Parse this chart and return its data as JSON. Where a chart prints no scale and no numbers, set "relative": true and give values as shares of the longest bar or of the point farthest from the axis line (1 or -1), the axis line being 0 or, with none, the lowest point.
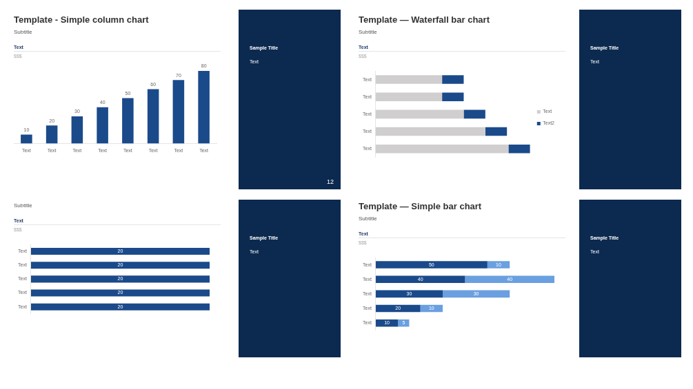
{
  "chart_data": [
    {
      "type": "bar",
      "title": "Template - Simple column chart",
      "subtitle": "Subtitle",
      "annotations": [
        "Text"
      ],
      "ylabel": "$$$",
      "categories": [
        "Text",
        "Text",
        "Text",
        "Text",
        "Text",
        "Text",
        "Text",
        "Text"
      ],
      "values": [
        10,
        20,
        30,
        40,
        50,
        60,
        70,
        80
      ],
      "color": "#1a4a8a",
      "data_labels": true,
      "grid": false,
      "legend": false
    },
    {
      "type": "other",
      "title": "Sample Title",
      "annotations": [
        "Text",
        "12"
      ]
    },
    {
      "type": "bar",
      "title": "Template — Waterfall bar chart",
      "subtitle": "Subtitle",
      "annotations": [
        "Text"
      ],
      "ylabel": "$$$",
      "orientation": "horizontal",
      "stacked": true,
      "relative": true,
      "categories": [
        "Text",
        "Text",
        "Text",
        "Text",
        "Text"
      ],
      "series": [
        {
          "name": "Text",
          "color": "#d0cece",
          "values": [
            0.43,
            0.43,
            0.57,
            0.71,
            0.86
          ]
        },
        {
          "name": "Text2",
          "color": "#1a4a8a",
          "values": [
            0.14,
            0.14,
            0.14,
            0.14,
            0.14
          ]
        }
      ],
      "grid": false,
      "legend": "right"
    },
    {
      "type": "other",
      "title": "Sample Title",
      "annotations": [
        "Text"
      ]
    },
    {
      "type": "bar",
      "subtitle": "Subtitle",
      "annotations": [
        "Text"
      ],
      "ylabel": "$$$",
      "orientation": "horizontal",
      "categories": [
        "Text",
        "Text",
        "Text",
        "Text",
        "Text"
      ],
      "values": [
        20,
        20,
        20,
        20,
        20
      ],
      "color": "#1a4a8a",
      "data_labels": true,
      "grid": false,
      "legend": false
    },
    {
      "type": "other",
      "title": "Sample Title",
      "annotations": [
        "Text"
      ]
    },
    {
      "type": "bar",
      "title": "Template — Simple bar chart",
      "subtitle": "Subtitle",
      "annotations": [
        "Text"
      ],
      "ylabel": "$$$",
      "orientation": "horizontal",
      "stacked": true,
      "categories": [
        "Text",
        "Text",
        "Text",
        "Text",
        "Text"
      ],
      "series": [
        {
          "color": "#1a4a8a",
          "values": [
            50,
            40,
            30,
            20,
            10
          ]
        },
        {
          "color": "#6a9fe0",
          "values": [
            10,
            40,
            30,
            10,
            5
          ]
        }
      ],
      "data_labels": true,
      "grid": false,
      "legend": false
    },
    {
      "type": "other",
      "title": "Sample Title",
      "annotations": [
        "Text"
      ]
    }
  ]
}
